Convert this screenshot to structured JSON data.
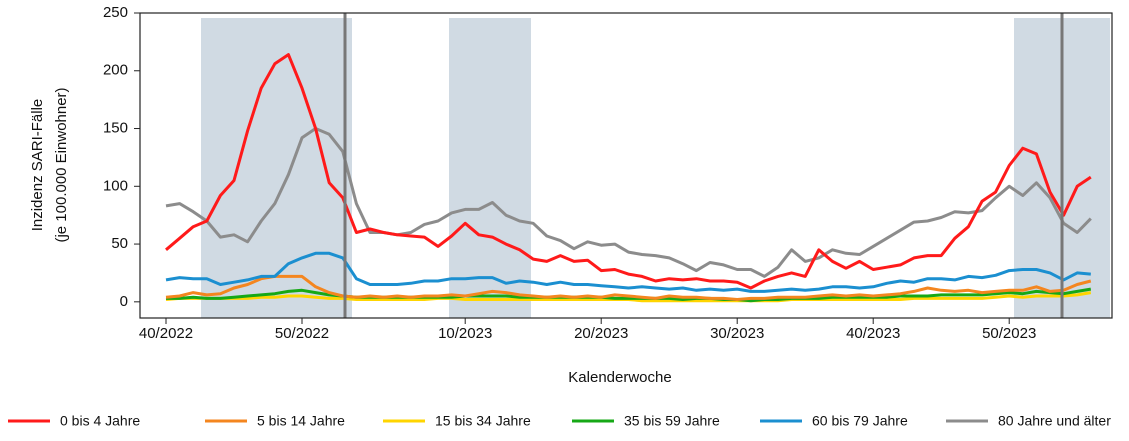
{
  "chart_data": {
    "type": "line",
    "xlabel": "Kalenderwoche",
    "ylabel": [
      "Inzidenz SARI-Fälle",
      "(je 100.000 Einwohner)"
    ],
    "categories": [
      "40/2022",
      null,
      null,
      null,
      null,
      null,
      null,
      null,
      null,
      null,
      "50/2022",
      null,
      null,
      null,
      null,
      null,
      null,
      null,
      null,
      null,
      null,
      null,
      "10/2023",
      null,
      null,
      null,
      null,
      null,
      null,
      null,
      null,
      null,
      "20/2023",
      null,
      null,
      null,
      null,
      null,
      null,
      null,
      null,
      null,
      "30/2023",
      null,
      null,
      null,
      null,
      null,
      null,
      null,
      null,
      null,
      "40/2023",
      null,
      null,
      null,
      null,
      null,
      null,
      null,
      null,
      null,
      "50/2023",
      null,
      null,
      null,
      null,
      null,
      null
    ],
    "ylim": [
      -14,
      250
    ],
    "yticks": [
      0,
      50,
      100,
      150,
      200,
      250
    ],
    "series": [
      {
        "name": "0 bis 4 Jahre",
        "color": "#ff1a1a",
        "values": [
          45,
          55,
          65,
          70,
          92,
          105,
          148,
          185,
          206,
          214,
          185,
          150,
          103,
          90,
          60,
          63,
          60,
          58,
          57,
          56,
          48,
          57,
          68,
          58,
          56,
          50,
          45,
          37,
          35,
          40,
          35,
          36,
          27,
          28,
          24,
          22,
          18,
          20,
          19,
          20,
          18,
          18,
          17,
          12,
          18,
          22,
          25,
          22,
          45,
          35,
          29,
          35,
          28,
          30,
          32,
          38,
          40,
          40,
          55,
          65,
          87,
          95,
          118,
          133,
          128,
          95,
          75,
          100,
          108
        ]
      },
      {
        "name": "5 bis 14 Jahre",
        "color": "#f4861f",
        "values": [
          4,
          5,
          8,
          6,
          7,
          12,
          15,
          20,
          22,
          22,
          22,
          13,
          8,
          5,
          4,
          5,
          4,
          5,
          4,
          5,
          5,
          6,
          5,
          7,
          9,
          8,
          6,
          5,
          4,
          5,
          4,
          5,
          4,
          6,
          5,
          4,
          3,
          5,
          4,
          4,
          3,
          3,
          2,
          3,
          3,
          4,
          4,
          4,
          5,
          6,
          5,
          6,
          5,
          6,
          7,
          9,
          12,
          10,
          9,
          10,
          8,
          9,
          10,
          10,
          13,
          9,
          10,
          15,
          18
        ]
      },
      {
        "name": "15 bis 34 Jahre",
        "color": "#ffd500",
        "values": [
          2,
          3,
          3,
          3,
          3,
          3,
          3,
          4,
          4,
          5,
          5,
          4,
          3,
          3,
          2,
          2,
          2,
          2,
          2,
          2,
          3,
          3,
          2,
          2,
          2,
          2,
          2,
          2,
          2,
          2,
          2,
          2,
          2,
          2,
          2,
          1,
          1,
          1,
          1,
          1,
          1,
          1,
          1,
          1,
          1,
          1,
          2,
          2,
          2,
          2,
          2,
          2,
          2,
          2,
          2,
          3,
          3,
          3,
          3,
          3,
          3,
          4,
          5,
          4,
          5,
          5,
          5,
          6,
          8
        ]
      },
      {
        "name": "35 bis 59 Jahre",
        "color": "#16a816",
        "values": [
          3,
          3,
          4,
          3,
          3,
          4,
          5,
          6,
          7,
          9,
          10,
          8,
          6,
          5,
          4,
          4,
          4,
          4,
          4,
          4,
          4,
          4,
          5,
          5,
          5,
          5,
          4,
          4,
          4,
          4,
          4,
          4,
          4,
          3,
          3,
          3,
          3,
          3,
          2,
          3,
          3,
          2,
          2,
          1,
          2,
          2,
          3,
          3,
          3,
          4,
          4,
          4,
          4,
          4,
          5,
          5,
          5,
          6,
          6,
          6,
          6,
          7,
          8,
          7,
          9,
          8,
          7,
          9,
          11
        ]
      },
      {
        "name": "60 bis 79 Jahre",
        "color": "#1b8fd0",
        "values": [
          19,
          21,
          20,
          20,
          15,
          17,
          19,
          22,
          22,
          33,
          38,
          42,
          42,
          38,
          20,
          15,
          15,
          15,
          16,
          18,
          18,
          20,
          20,
          21,
          21,
          16,
          18,
          17,
          15,
          17,
          15,
          15,
          14,
          13,
          12,
          13,
          12,
          11,
          12,
          10,
          11,
          10,
          11,
          9,
          9,
          10,
          11,
          10,
          11,
          13,
          13,
          12,
          13,
          16,
          18,
          17,
          20,
          20,
          19,
          22,
          21,
          23,
          27,
          28,
          28,
          25,
          19,
          25,
          24
        ]
      },
      {
        "name": "80 Jahre und älter",
        "color": "#8c8c8c",
        "values": [
          83,
          85,
          78,
          70,
          56,
          58,
          52,
          70,
          85,
          110,
          142,
          150,
          145,
          130,
          85,
          60,
          60,
          58,
          60,
          67,
          70,
          77,
          80,
          80,
          86,
          75,
          70,
          68,
          57,
          53,
          46,
          52,
          49,
          50,
          43,
          41,
          40,
          38,
          33,
          27,
          34,
          32,
          28,
          28,
          22,
          30,
          45,
          35,
          38,
          45,
          42,
          41,
          48,
          55,
          62,
          69,
          70,
          73,
          78,
          77,
          79,
          90,
          100,
          92,
          103,
          90,
          68,
          60,
          72
        ]
      }
    ]
  }
}
